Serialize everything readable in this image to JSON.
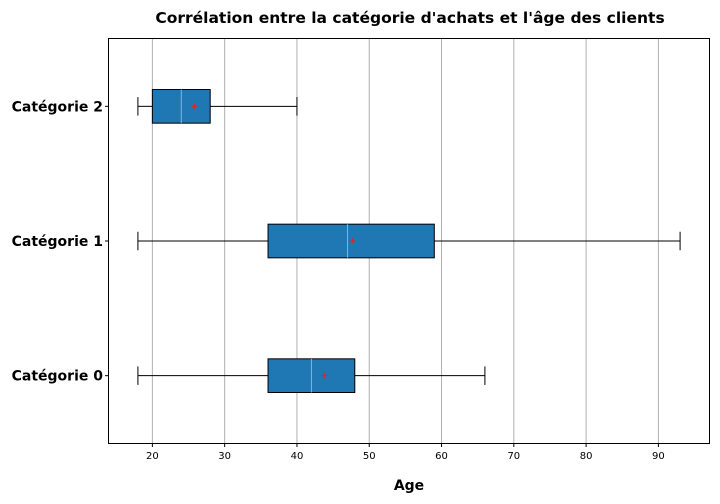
{
  "chart_data": {
    "type": "boxplot",
    "orientation": "horizontal",
    "title": "Corrélation entre la catégorie d'achats et l'âge des clients",
    "xlabel": "Age",
    "ylabel": "",
    "xlim": [
      14,
      97
    ],
    "xticks": [
      20,
      30,
      40,
      50,
      60,
      70,
      80,
      90
    ],
    "grid": "vertical",
    "box_color": "#1f77b4",
    "median_color": "#7fb8d8",
    "mean_marker_color": "#d62728",
    "categories": [
      "Catégorie 0",
      "Catégorie 1",
      "Catégorie 2"
    ],
    "boxes": [
      {
        "label": "Catégorie 0",
        "whisker_low": 18,
        "q1": 36,
        "median": 42,
        "q3": 48,
        "whisker_high": 66,
        "mean": 43.8
      },
      {
        "label": "Catégorie 1",
        "whisker_low": 18,
        "q1": 36,
        "median": 47,
        "q3": 59,
        "whisker_high": 93,
        "mean": 47.7
      },
      {
        "label": "Catégorie 2",
        "whisker_low": 18,
        "q1": 20,
        "median": 24,
        "q3": 28,
        "whisker_high": 40,
        "mean": 25.8
      }
    ]
  }
}
